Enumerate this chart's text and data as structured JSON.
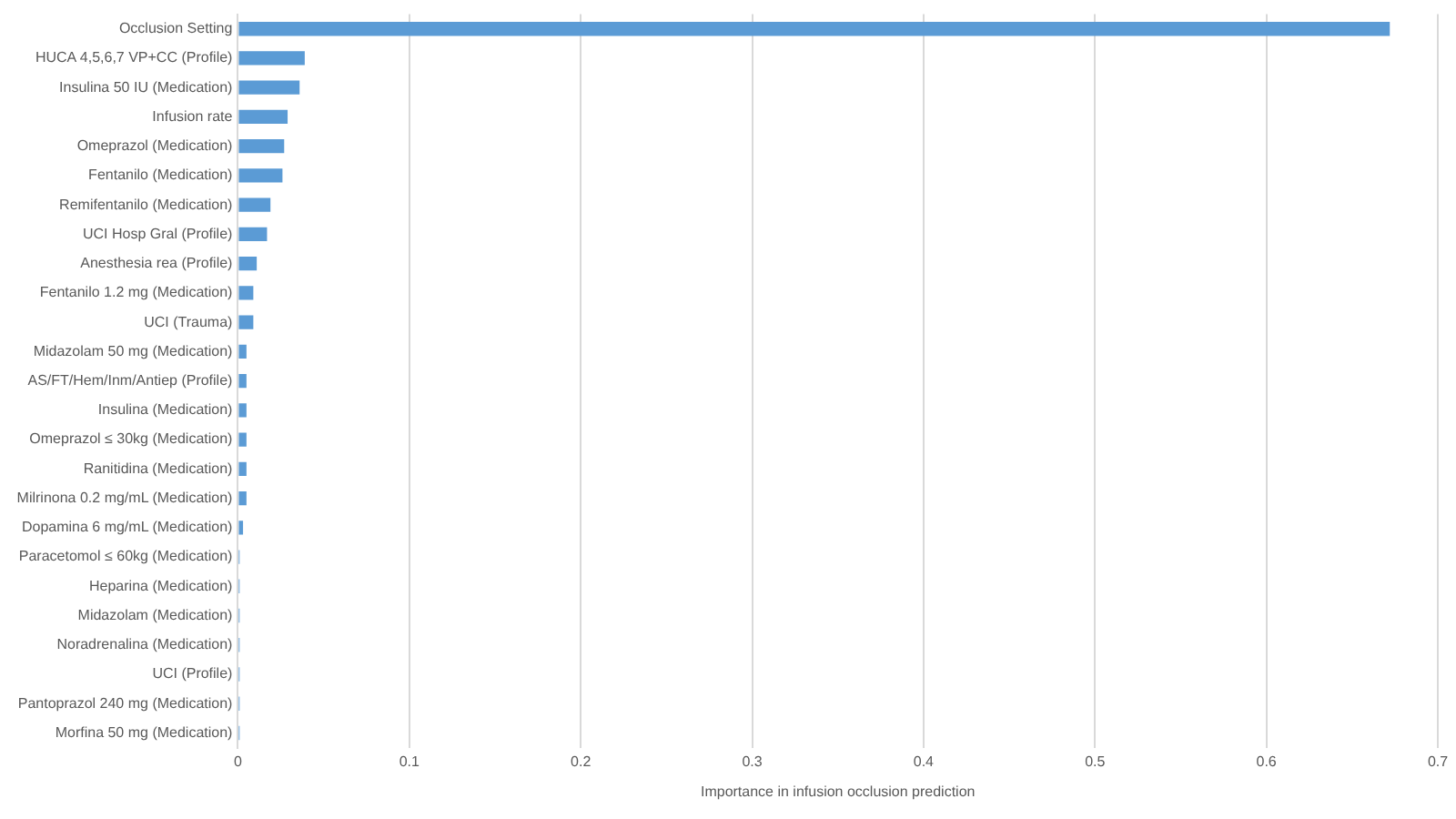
{
  "chart_data": {
    "type": "bar",
    "orientation": "horizontal",
    "xlabel": "Importance in infusion occlusion prediction",
    "categories": [
      "Occlusion Setting",
      "HUCA 4,5,6,7 VP+CC (Profile)",
      "Insulina 50 IU (Medication)",
      "Infusion rate",
      "Omeprazol (Medication)",
      "Fentanilo (Medication)",
      "Remifentanilo (Medication)",
      "UCI Hosp Gral (Profile)",
      "Anesthesia rea (Profile)",
      "Fentanilo 1.2 mg (Medication)",
      "UCI (Trauma)",
      "Midazolam 50 mg (Medication)",
      "AS/FT/Hem/Inm/Antiep (Profile)",
      "Insulina (Medication)",
      "Omeprazol ≤ 30kg (Medication)",
      "Ranitidina (Medication)",
      "Milrinona 0.2 mg/mL (Medication)",
      "Dopamina 6 mg/mL (Medication)",
      "Paracetomol ≤ 60kg (Medication)",
      "Heparina (Medication)",
      "Midazolam (Medication)",
      "Noradrenalina (Medication)",
      "UCI (Profile)",
      "Pantoprazol 240 mg (Medication)",
      "Morfina 50 mg (Medication)"
    ],
    "values": [
      0.672,
      0.039,
      0.036,
      0.029,
      0.027,
      0.026,
      0.019,
      0.017,
      0.011,
      0.009,
      0.009,
      0.005,
      0.005,
      0.005,
      0.005,
      0.005,
      0.005,
      0.003,
      0.001,
      0.001,
      0.001,
      0.001,
      0.001,
      0.001,
      0.001
    ],
    "color": "#5b9bd5",
    "xlim": [
      0,
      0.7
    ],
    "xticks": [
      0,
      0.1,
      0.2,
      0.3,
      0.4,
      0.5,
      0.6,
      0.7
    ],
    "grid": "x"
  }
}
